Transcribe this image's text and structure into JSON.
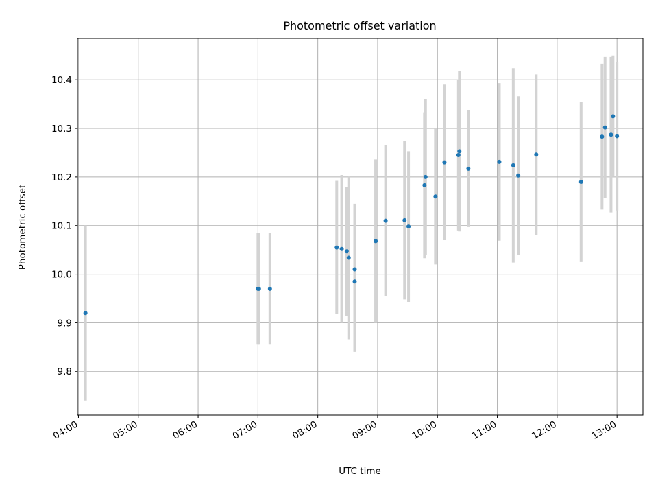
{
  "chart_data": {
    "type": "scatter",
    "title": "Photometric offset variation",
    "xlabel": "UTC time",
    "ylabel": "Photometric offset",
    "x_ticks": [
      "04:00",
      "05:00",
      "06:00",
      "07:00",
      "08:00",
      "09:00",
      "10:00",
      "11:00",
      "12:00",
      "13:00"
    ],
    "y_ticks": [
      "9.8",
      "9.9",
      "10.0",
      "10.1",
      "10.2",
      "10.3",
      "10.4"
    ],
    "xlim": [
      "03:59",
      "13:26"
    ],
    "ylim": [
      9.71,
      10.485
    ],
    "grid": true,
    "colors": {
      "points": "#1f77b4",
      "errorbars": "#d3d3d3"
    },
    "points": [
      {
        "x": "04:07",
        "y": 9.92,
        "yerr": 0.18
      },
      {
        "x": "07:00",
        "y": 9.97,
        "yerr": 0.115
      },
      {
        "x": "07:01",
        "y": 9.97,
        "yerr": 0.115
      },
      {
        "x": "07:12",
        "y": 9.97,
        "yerr": 0.115
      },
      {
        "x": "08:19",
        "y": 10.055,
        "yerr": 0.137
      },
      {
        "x": "08:24",
        "y": 10.052,
        "yerr": 0.152
      },
      {
        "x": "08:29",
        "y": 10.047,
        "yerr": 0.133
      },
      {
        "x": "08:31",
        "y": 10.034,
        "yerr": 0.168
      },
      {
        "x": "08:37",
        "y": 10.01,
        "yerr": 0.135
      },
      {
        "x": "08:37",
        "y": 9.985,
        "yerr": 0.145
      },
      {
        "x": "08:58",
        "y": 10.068,
        "yerr": 0.168
      },
      {
        "x": "09:08",
        "y": 10.11,
        "yerr": 0.155
      },
      {
        "x": "09:27",
        "y": 10.111,
        "yerr": 0.163
      },
      {
        "x": "09:31",
        "y": 10.098,
        "yerr": 0.155
      },
      {
        "x": "09:47",
        "y": 10.183,
        "yerr": 0.15
      },
      {
        "x": "09:48",
        "y": 10.2,
        "yerr": 0.16
      },
      {
        "x": "09:58",
        "y": 10.16,
        "yerr": 0.14
      },
      {
        "x": "10:07",
        "y": 10.23,
        "yerr": 0.16
      },
      {
        "x": "10:21",
        "y": 10.245,
        "yerr": 0.155
      },
      {
        "x": "10:22",
        "y": 10.253,
        "yerr": 0.165
      },
      {
        "x": "10:31",
        "y": 10.217,
        "yerr": 0.12
      },
      {
        "x": "11:02",
        "y": 10.231,
        "yerr": 0.162
      },
      {
        "x": "11:16",
        "y": 10.224,
        "yerr": 0.2
      },
      {
        "x": "11:21",
        "y": 10.203,
        "yerr": 0.163
      },
      {
        "x": "11:39",
        "y": 10.246,
        "yerr": 0.165
      },
      {
        "x": "12:24",
        "y": 10.19,
        "yerr": 0.165
      },
      {
        "x": "12:45",
        "y": 10.283,
        "yerr": 0.15
      },
      {
        "x": "12:48",
        "y": 10.302,
        "yerr": 0.145
      },
      {
        "x": "12:54",
        "y": 10.287,
        "yerr": 0.16
      },
      {
        "x": "12:56",
        "y": 10.325,
        "yerr": 0.125
      },
      {
        "x": "13:00",
        "y": 10.284,
        "yerr": 0.153
      }
    ]
  }
}
